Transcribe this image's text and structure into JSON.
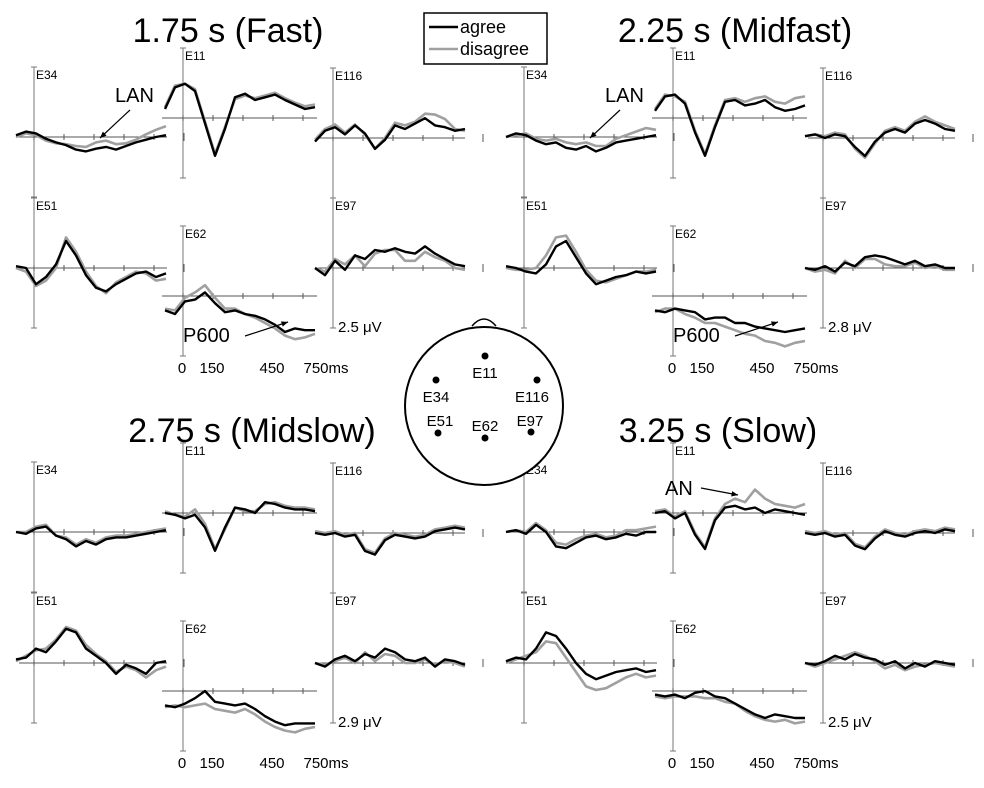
{
  "legend": {
    "agree": {
      "label": "agree",
      "color": "#000000"
    },
    "disagree": {
      "label": "disagree",
      "color": "#a0a0a0"
    }
  },
  "head_map": {
    "electrodes": [
      "E11",
      "E34",
      "E116",
      "E51",
      "E62",
      "E97"
    ]
  },
  "time_axis": {
    "ticks": [
      "0",
      "150",
      "450",
      "750ms"
    ]
  },
  "chart_data": [
    {
      "type": "line",
      "title": "1.75 s (Fast)",
      "scale_label": "2.5 μV",
      "annotations": [
        {
          "text": "LAN",
          "electrode": "E34"
        },
        {
          "text": "P600",
          "electrode": "E62"
        }
      ],
      "electrodes": [
        {
          "name": "E34",
          "agree": [
            0.2,
            0.6,
            0.4,
            -0.2,
            -0.6,
            -0.9,
            -1.4,
            -1.6,
            -1.3,
            -1.1,
            -1.4,
            -1.0,
            -0.6,
            -0.3,
            0.0,
            0.2
          ],
          "disagree": [
            0.0,
            0.4,
            0.2,
            -0.4,
            -0.7,
            -0.8,
            -1.0,
            -1.1,
            -0.6,
            -0.4,
            -0.8,
            -0.7,
            -0.3,
            0.3,
            0.8,
            1.2
          ]
        },
        {
          "name": "E11",
          "agree": [
            1.0,
            3.4,
            3.8,
            3.0,
            -0.6,
            -4.2,
            -1.2,
            2.3,
            2.7,
            2.0,
            2.3,
            2.6,
            2.0,
            1.5,
            1.0,
            1.2
          ],
          "disagree": [
            1.2,
            3.6,
            3.8,
            3.2,
            -0.4,
            -4.0,
            -1.0,
            2.1,
            2.5,
            2.2,
            2.5,
            2.8,
            2.2,
            1.7,
            1.3,
            1.5
          ]
        },
        {
          "name": "E116",
          "agree": [
            -0.4,
            0.8,
            1.2,
            0.4,
            1.4,
            0.5,
            -1.2,
            -0.2,
            1.4,
            1.0,
            1.6,
            2.2,
            1.4,
            1.2,
            0.8,
            1.0
          ],
          "disagree": [
            -0.2,
            1.0,
            1.5,
            0.6,
            1.5,
            0.4,
            -1.2,
            0.0,
            1.7,
            1.4,
            1.8,
            2.7,
            2.6,
            2.1,
            1.0,
            0.8
          ]
        },
        {
          "name": "E51",
          "agree": [
            0.2,
            0.0,
            -1.8,
            -1.0,
            0.4,
            3.0,
            1.4,
            -0.8,
            -2.2,
            -2.6,
            -1.8,
            -1.2,
            -0.6,
            -0.4,
            -1.0,
            -0.6
          ],
          "disagree": [
            0.0,
            -0.4,
            -2.0,
            -1.4,
            0.0,
            3.4,
            1.8,
            -0.4,
            -2.0,
            -2.8,
            -1.6,
            -1.0,
            -0.4,
            -0.6,
            -1.4,
            -1.2
          ]
        },
        {
          "name": "E62",
          "agree": [
            -1.6,
            -2.0,
            -0.6,
            -0.4,
            0.4,
            -0.8,
            -1.8,
            -1.6,
            -2.0,
            -2.2,
            -2.6,
            -3.2,
            -4.0,
            -3.6,
            -3.8,
            -3.8
          ],
          "disagree": [
            -1.4,
            -1.6,
            -0.2,
            0.4,
            1.2,
            -0.2,
            -1.4,
            -1.4,
            -2.0,
            -2.4,
            -3.0,
            -3.6,
            -4.4,
            -4.8,
            -4.6,
            -4.2
          ]
        },
        {
          "name": "E97",
          "agree": [
            0.0,
            -0.8,
            0.8,
            -0.2,
            1.4,
            1.0,
            2.0,
            1.8,
            2.2,
            1.8,
            1.6,
            2.4,
            1.6,
            1.0,
            0.4,
            0.2
          ],
          "disagree": [
            0.0,
            -0.4,
            1.0,
            0.4,
            1.4,
            0.2,
            1.6,
            2.0,
            2.0,
            0.8,
            0.8,
            1.8,
            1.2,
            0.8,
            0.0,
            -0.2
          ]
        }
      ]
    },
    {
      "type": "line",
      "title": "2.25 s (Midfast)",
      "scale_label": "2.8 μV",
      "annotations": [
        {
          "text": "LAN",
          "electrode": "E34"
        },
        {
          "text": "P600",
          "electrode": "E62"
        }
      ],
      "electrodes": [
        {
          "name": "E34",
          "agree": [
            0.0,
            0.4,
            0.2,
            -0.4,
            -0.8,
            -0.6,
            -1.2,
            -1.4,
            -1.0,
            -1.6,
            -1.2,
            -0.6,
            -0.4,
            -0.2,
            0.0,
            0.2
          ],
          "disagree": [
            0.0,
            0.2,
            0.4,
            -0.2,
            -0.4,
            -0.2,
            -0.6,
            -0.8,
            -0.6,
            -1.0,
            -1.0,
            -0.2,
            0.2,
            0.6,
            1.0,
            0.8
          ]
        },
        {
          "name": "E11",
          "agree": [
            0.8,
            2.4,
            2.6,
            1.6,
            -1.6,
            -4.2,
            -1.0,
            1.8,
            2.0,
            1.4,
            1.6,
            2.0,
            1.2,
            0.8,
            1.0,
            1.4
          ],
          "disagree": [
            1.0,
            2.6,
            2.4,
            1.8,
            -1.4,
            -4.0,
            -0.8,
            2.0,
            2.2,
            1.8,
            2.2,
            2.4,
            1.8,
            1.6,
            2.2,
            2.4
          ]
        },
        {
          "name": "E116",
          "agree": [
            0.2,
            0.4,
            0.0,
            0.4,
            0.2,
            -1.0,
            -2.0,
            -0.4,
            0.6,
            1.0,
            0.6,
            1.6,
            2.0,
            1.6,
            1.0,
            0.8
          ],
          "disagree": [
            0.2,
            0.4,
            0.2,
            0.6,
            0.4,
            -1.2,
            -2.2,
            -0.6,
            0.8,
            1.2,
            0.8,
            1.8,
            2.4,
            1.8,
            1.4,
            1.0
          ]
        },
        {
          "name": "E51",
          "agree": [
            0.2,
            0.0,
            -0.4,
            -0.6,
            0.4,
            2.4,
            3.0,
            1.2,
            -0.6,
            -1.8,
            -1.4,
            -1.0,
            -0.8,
            -0.4,
            -0.6,
            -0.4
          ],
          "disagree": [
            0.0,
            -0.2,
            -0.2,
            0.0,
            1.4,
            3.4,
            3.6,
            1.8,
            -0.2,
            -1.4,
            -1.6,
            -1.2,
            -0.8,
            -0.4,
            -0.4,
            -0.2
          ]
        },
        {
          "name": "E62",
          "agree": [
            -1.6,
            -1.8,
            -1.4,
            -1.6,
            -1.8,
            -2.6,
            -2.4,
            -2.4,
            -3.0,
            -3.0,
            -3.4,
            -3.6,
            -3.8,
            -4.0,
            -3.8,
            -3.6
          ],
          "disagree": [
            -1.8,
            -1.4,
            -1.4,
            -2.0,
            -2.4,
            -3.0,
            -3.0,
            -3.4,
            -3.8,
            -4.2,
            -4.4,
            -5.0,
            -5.2,
            -5.6,
            -5.2,
            -5.0
          ]
        },
        {
          "name": "E97",
          "agree": [
            0.0,
            -0.2,
            0.2,
            -0.4,
            0.6,
            0.2,
            1.2,
            1.4,
            1.2,
            0.8,
            0.4,
            0.8,
            0.2,
            0.4,
            0.0,
            0.0
          ],
          "disagree": [
            0.0,
            -0.4,
            -0.2,
            -0.6,
            0.8,
            0.0,
            1.0,
            1.0,
            0.4,
            0.2,
            0.2,
            0.6,
            0.0,
            0.2,
            -0.2,
            -0.2
          ]
        }
      ]
    },
    {
      "type": "line",
      "title": "2.75 s (Midslow)",
      "scale_label": "2.9 μV",
      "annotations": [],
      "electrodes": [
        {
          "name": "E34",
          "agree": [
            0.0,
            -0.2,
            0.4,
            0.6,
            -0.4,
            -0.8,
            -1.6,
            -1.0,
            -1.4,
            -0.8,
            -0.6,
            -0.6,
            -0.4,
            -0.2,
            0.0,
            0.2
          ],
          "disagree": [
            0.0,
            0.0,
            0.6,
            0.8,
            -0.4,
            -0.6,
            -1.4,
            -0.8,
            -1.2,
            -0.6,
            -0.4,
            -0.4,
            -0.2,
            0.0,
            0.2,
            0.4
          ]
        },
        {
          "name": "E11",
          "agree": [
            0.0,
            -0.2,
            -0.6,
            -0.2,
            -1.6,
            -4.2,
            -1.6,
            0.6,
            0.4,
            0.0,
            1.2,
            1.0,
            0.6,
            0.4,
            0.4,
            0.2
          ],
          "disagree": [
            0.2,
            -0.2,
            -0.4,
            0.4,
            -1.2,
            -4.0,
            -1.8,
            0.6,
            0.2,
            0.2,
            1.0,
            1.2,
            0.8,
            0.6,
            0.6,
            0.4
          ]
        },
        {
          "name": "E116",
          "agree": [
            0.0,
            -0.2,
            0.0,
            -0.4,
            -0.2,
            -2.0,
            -2.4,
            -0.8,
            -0.2,
            -0.4,
            -0.6,
            -0.4,
            0.2,
            0.4,
            0.6,
            0.4
          ],
          "disagree": [
            0.2,
            0.0,
            0.2,
            -0.2,
            0.0,
            -1.8,
            -2.2,
            -0.6,
            0.0,
            -0.2,
            -0.4,
            -0.2,
            0.4,
            0.6,
            0.8,
            0.6
          ]
        },
        {
          "name": "E51",
          "agree": [
            0.4,
            0.6,
            1.6,
            1.2,
            2.4,
            3.8,
            3.4,
            1.6,
            0.8,
            0.0,
            -1.2,
            -0.2,
            -0.6,
            -1.2,
            0.0,
            0.2
          ],
          "disagree": [
            0.2,
            0.8,
            1.4,
            1.6,
            2.6,
            4.0,
            3.6,
            2.0,
            1.0,
            0.2,
            -1.0,
            -0.4,
            -0.8,
            -1.6,
            -0.8,
            -0.4
          ]
        },
        {
          "name": "E62",
          "agree": [
            -1.6,
            -1.8,
            -1.4,
            -0.8,
            0.0,
            -1.2,
            -1.4,
            -1.6,
            -1.4,
            -2.0,
            -2.8,
            -3.4,
            -3.8,
            -3.6,
            -3.6,
            -3.6
          ],
          "disagree": [
            -1.8,
            -1.6,
            -1.8,
            -1.6,
            -1.4,
            -2.0,
            -2.2,
            -2.4,
            -2.0,
            -2.6,
            -3.4,
            -4.0,
            -4.4,
            -4.6,
            -4.2,
            -4.0
          ]
        },
        {
          "name": "E97",
          "agree": [
            0.0,
            -0.4,
            0.4,
            0.8,
            0.2,
            1.0,
            0.6,
            1.6,
            1.2,
            0.4,
            0.2,
            0.6,
            -0.4,
            0.4,
            0.2,
            -0.2
          ],
          "disagree": [
            0.0,
            -0.2,
            0.2,
            0.6,
            0.0,
            1.2,
            0.2,
            1.0,
            0.8,
            0.0,
            0.0,
            0.4,
            -0.2,
            0.2,
            0.0,
            -0.4
          ]
        }
      ]
    },
    {
      "type": "line",
      "title": "3.25 s (Slow)",
      "scale_label": "2.5 μV",
      "annotations": [
        {
          "text": "AN",
          "electrode": "E11"
        }
      ],
      "electrodes": [
        {
          "name": "E34",
          "agree": [
            0.0,
            0.2,
            -0.2,
            0.8,
            0.0,
            -1.6,
            -1.8,
            -1.2,
            -0.6,
            -0.4,
            -0.8,
            -0.6,
            -0.2,
            -0.4,
            0.0,
            0.0
          ],
          "disagree": [
            0.0,
            0.2,
            0.0,
            1.0,
            0.2,
            -1.2,
            -1.4,
            -0.8,
            -0.4,
            -0.2,
            -0.6,
            -0.4,
            0.2,
            0.2,
            0.4,
            0.6
          ]
        },
        {
          "name": "E11",
          "agree": [
            0.0,
            0.2,
            -0.6,
            0.0,
            -2.4,
            -4.0,
            -0.8,
            0.6,
            0.8,
            0.4,
            0.6,
            0.0,
            0.4,
            0.2,
            0.0,
            -0.2
          ],
          "disagree": [
            0.2,
            0.4,
            -0.4,
            0.2,
            -2.2,
            -3.8,
            -0.6,
            1.0,
            1.6,
            1.2,
            2.6,
            1.6,
            1.0,
            0.8,
            0.6,
            1.0
          ]
        },
        {
          "name": "E116",
          "agree": [
            0.0,
            -0.2,
            0.0,
            -0.4,
            -0.2,
            -1.4,
            -1.8,
            -0.6,
            0.2,
            -0.2,
            -0.4,
            0.0,
            0.2,
            0.0,
            0.4,
            0.2
          ],
          "disagree": [
            0.2,
            0.0,
            0.2,
            -0.2,
            0.0,
            -1.2,
            -1.6,
            -0.4,
            0.4,
            0.0,
            -0.2,
            0.2,
            0.4,
            0.2,
            0.6,
            0.4
          ]
        },
        {
          "name": "E51",
          "agree": [
            0.2,
            0.6,
            0.4,
            1.6,
            3.4,
            3.0,
            1.6,
            0.0,
            -1.2,
            -1.8,
            -1.4,
            -1.0,
            -0.8,
            -0.6,
            -1.0,
            -0.8
          ],
          "disagree": [
            0.0,
            0.4,
            0.8,
            1.2,
            2.4,
            2.2,
            0.6,
            -1.0,
            -2.6,
            -3.0,
            -2.8,
            -2.2,
            -1.6,
            -1.2,
            -1.6,
            -1.4
          ]
        },
        {
          "name": "E62",
          "agree": [
            -0.4,
            -0.6,
            -0.4,
            -0.8,
            -0.2,
            0.0,
            -0.6,
            -0.8,
            -1.4,
            -2.0,
            -2.6,
            -3.0,
            -2.6,
            -2.8,
            -3.0,
            -3.0
          ],
          "disagree": [
            -0.6,
            -0.8,
            -0.6,
            -0.6,
            -0.6,
            -0.8,
            -0.8,
            -1.2,
            -1.4,
            -2.2,
            -2.8,
            -3.2,
            -3.4,
            -3.2,
            -3.6,
            -3.4
          ]
        },
        {
          "name": "E97",
          "agree": [
            0.0,
            -0.2,
            0.2,
            0.8,
            0.4,
            1.0,
            0.6,
            0.4,
            -0.2,
            0.2,
            -0.6,
            0.0,
            -0.4,
            0.2,
            0.0,
            -0.2
          ],
          "disagree": [
            0.0,
            -0.4,
            0.0,
            0.4,
            0.8,
            1.2,
            0.8,
            0.2,
            -0.6,
            -0.2,
            -0.8,
            -0.4,
            -0.2,
            0.0,
            -0.2,
            -0.4
          ]
        }
      ]
    }
  ]
}
